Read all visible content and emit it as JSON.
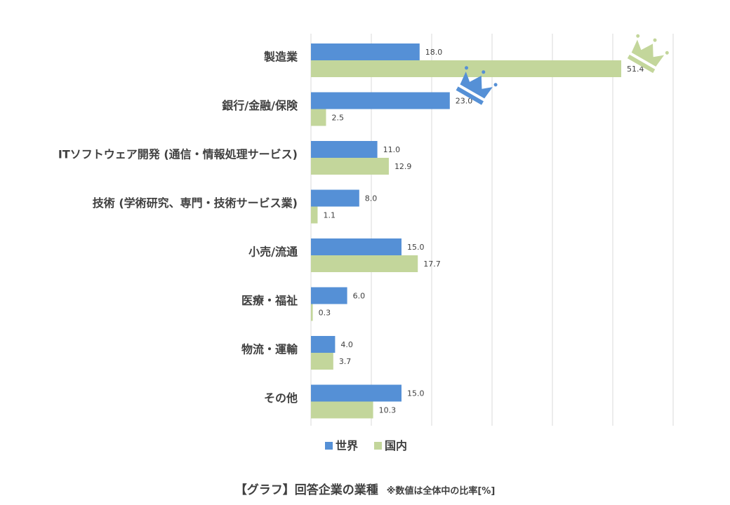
{
  "chart_data": {
    "type": "bar",
    "orientation": "horizontal",
    "categories": [
      "製造業",
      "銀行/金融/保険",
      "ITソフトウェア開発 (通信・情報処理サービス)",
      "技術 (学術研究、専門・技術サービス業)",
      "小売/流通",
      "医療・福祉",
      "物流・運輸",
      "その他"
    ],
    "series": [
      {
        "name": "世界",
        "values": [
          18.0,
          23.0,
          11.0,
          8.0,
          15.0,
          6.0,
          4.0,
          15.0
        ],
        "color": "#5590d6"
      },
      {
        "name": "国内",
        "values": [
          51.4,
          2.5,
          12.9,
          1.1,
          17.7,
          0.3,
          3.7,
          10.3
        ],
        "color": "#c3d69b"
      }
    ],
    "xlim": [
      0,
      60
    ],
    "grid": true,
    "legend": "bottom",
    "crowns": [
      {
        "series": "世界",
        "category": "銀行/金融/保険",
        "color": "#5590d6"
      },
      {
        "series": "国内",
        "category": "製造業",
        "color": "#c3d69b"
      }
    ]
  },
  "caption": {
    "title": "【グラフ】回答企業の業種",
    "note": "※数値は全体中の比率[%]"
  }
}
